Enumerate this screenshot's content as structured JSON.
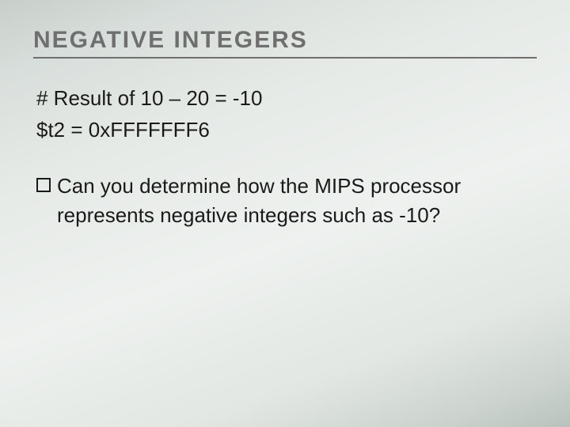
{
  "slide": {
    "title": "NEGATIVE INTEGERS",
    "title_color": "#6f6f6f",
    "title_fontsize": 30,
    "title_letter_spacing": 2,
    "rule_color": "#6f6f6f",
    "body_color": "#1a1a1a",
    "body_fontsize": 26,
    "line1": "# Result of 10 – 20 = -10",
    "line2": "$t2 = 0xFFFFFFF6",
    "bullet_text": "Can you determine how the MIPS processor represents negative integers such as -10?",
    "background_gradient": {
      "stops": [
        "#c8cfca",
        "#d8dedb",
        "#e6eae7",
        "#eef1ef",
        "#e2e7e3",
        "#ccd3ce",
        "#b9c2bc"
      ]
    }
  }
}
